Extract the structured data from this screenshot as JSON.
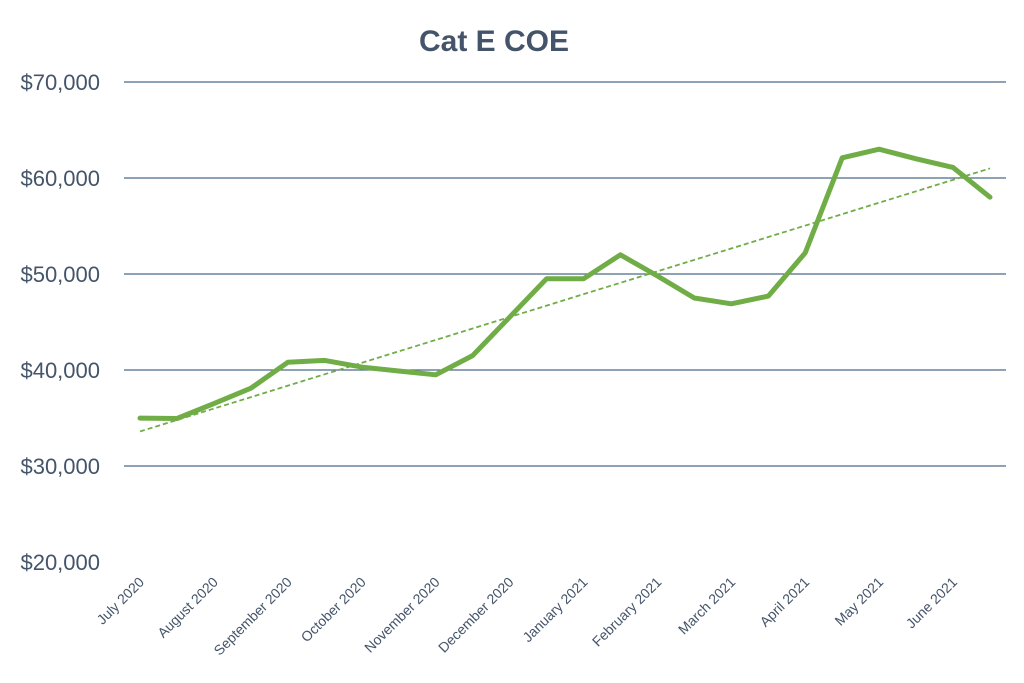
{
  "chart_data": {
    "type": "line",
    "title": "Cat E COE",
    "xlabel": "",
    "ylabel": "",
    "ylim": [
      20000,
      70000
    ],
    "yticks": [
      20000,
      30000,
      40000,
      50000,
      60000,
      70000
    ],
    "ytick_labels": [
      "$20,000",
      "$30,000",
      "$40,000",
      "$50,000",
      "$60,000",
      "$70,000"
    ],
    "xtick_labels": [
      "July 2020",
      "August 2020",
      "September 2020",
      "October 2020",
      "November 2020",
      "December 2020",
      "January 2021",
      "February 2021",
      "March 2021",
      "April 2021",
      "May 2021",
      "June 2021"
    ],
    "grid": true,
    "legend": "none",
    "series": [
      {
        "color": "#70ad47",
        "style": "solid",
        "values": [
          34990,
          34950,
          36500,
          38100,
          40800,
          41000,
          40300,
          39900,
          39500,
          41500,
          45500,
          49500,
          49500,
          52000,
          49800,
          47500,
          46900,
          47700,
          52200,
          62100,
          63000,
          62000,
          61100,
          58000
        ]
      },
      {
        "type": "trendline",
        "color": "#70ad47",
        "style": "dashed",
        "values": [
          33600,
          61000
        ]
      }
    ]
  }
}
